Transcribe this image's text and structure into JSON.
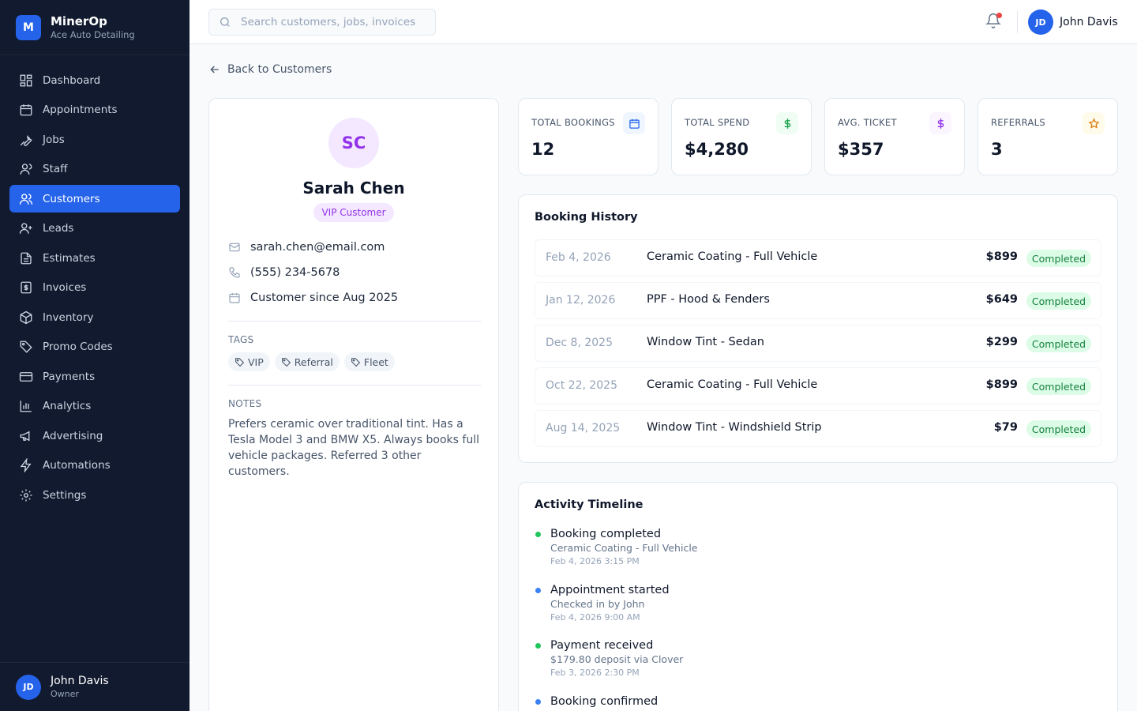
{
  "brand": {
    "name": "MinerOp",
    "subtitle": "Ace Auto Detailing",
    "logo_letter": "M"
  },
  "nav": [
    {
      "label": "Dashboard",
      "icon": "dashboard-icon"
    },
    {
      "label": "Appointments",
      "icon": "calendar-icon"
    },
    {
      "label": "Jobs",
      "icon": "wrench-icon"
    },
    {
      "label": "Staff",
      "icon": "user-icon"
    },
    {
      "label": "Customers",
      "icon": "users-icon",
      "active": true
    },
    {
      "label": "Leads",
      "icon": "user-plus-icon"
    },
    {
      "label": "Estimates",
      "icon": "file-icon"
    },
    {
      "label": "Invoices",
      "icon": "receipt-icon"
    },
    {
      "label": "Inventory",
      "icon": "box-icon"
    },
    {
      "label": "Promo Codes",
      "icon": "tag-icon"
    },
    {
      "label": "Payments",
      "icon": "credit-card-icon"
    },
    {
      "label": "Analytics",
      "icon": "bar-chart-icon"
    },
    {
      "label": "Advertising",
      "icon": "megaphone-icon"
    },
    {
      "label": "Automations",
      "icon": "lightning-icon"
    },
    {
      "label": "Settings",
      "icon": "gear-icon"
    }
  ],
  "sidebar_user": {
    "initials": "JD",
    "name": "John Davis",
    "role": "Owner"
  },
  "header": {
    "search_placeholder": "Search customers, jobs, invoices",
    "user_initials": "JD",
    "user_name": "John Davis"
  },
  "back_label": "Back to Customers",
  "customer": {
    "initials": "SC",
    "name": "Sarah Chen",
    "badge": "VIP Customer",
    "email": "sarah.chen@email.com",
    "phone": "(555) 234-5678",
    "since": "Customer since Aug 2025",
    "tags_label": "TAGS",
    "tags": [
      "VIP",
      "Referral",
      "Fleet"
    ],
    "notes_label": "NOTES",
    "notes": "Prefers ceramic over traditional tint. Has a Tesla Model 3 and BMW X5. Always books full vehicle packages. Referred 3 other customers."
  },
  "stats": [
    {
      "label": "TOTAL BOOKINGS",
      "value": "12",
      "icon": "calendar-icon",
      "color": "#2563eb",
      "bg": "#eff6ff"
    },
    {
      "label": "TOTAL SPEND",
      "value": "$4,280",
      "icon": "dollar-icon",
      "color": "#16a34a",
      "bg": "#f0fdf4"
    },
    {
      "label": "AVG. TICKET",
      "value": "$357",
      "icon": "dollar-icon",
      "color": "#9333ea",
      "bg": "#faf5ff"
    },
    {
      "label": "REFERRALS",
      "value": "3",
      "icon": "star-icon",
      "color": "#d97706",
      "bg": "#fffbeb"
    }
  ],
  "booking_history": {
    "title": "Booking History",
    "rows": [
      {
        "date": "Feb 4, 2026",
        "service": "Ceramic Coating - Full Vehicle",
        "amount": "$899",
        "status": "Completed"
      },
      {
        "date": "Jan 12, 2026",
        "service": "PPF - Hood & Fenders",
        "amount": "$649",
        "status": "Completed"
      },
      {
        "date": "Dec 8, 2025",
        "service": "Window Tint - Sedan",
        "amount": "$299",
        "status": "Completed"
      },
      {
        "date": "Oct 22, 2025",
        "service": "Ceramic Coating - Full Vehicle",
        "amount": "$899",
        "status": "Completed"
      },
      {
        "date": "Aug 14, 2025",
        "service": "Window Tint - Windshield Strip",
        "amount": "$79",
        "status": "Completed"
      }
    ]
  },
  "timeline": {
    "title": "Activity Timeline",
    "items": [
      {
        "title": "Booking completed",
        "detail": "Ceramic Coating - Full Vehicle",
        "time": "Feb 4, 2026 3:15 PM",
        "color": "#22c55e"
      },
      {
        "title": "Appointment started",
        "detail": "Checked in by John",
        "time": "Feb 4, 2026 9:00 AM",
        "color": "#3b82f6"
      },
      {
        "title": "Payment received",
        "detail": "$179.80 deposit via Clover",
        "time": "Feb 3, 2026 2:30 PM",
        "color": "#22c55e"
      },
      {
        "title": "Booking confirmed",
        "detail": "",
        "time": "",
        "color": "#3b82f6"
      }
    ]
  }
}
